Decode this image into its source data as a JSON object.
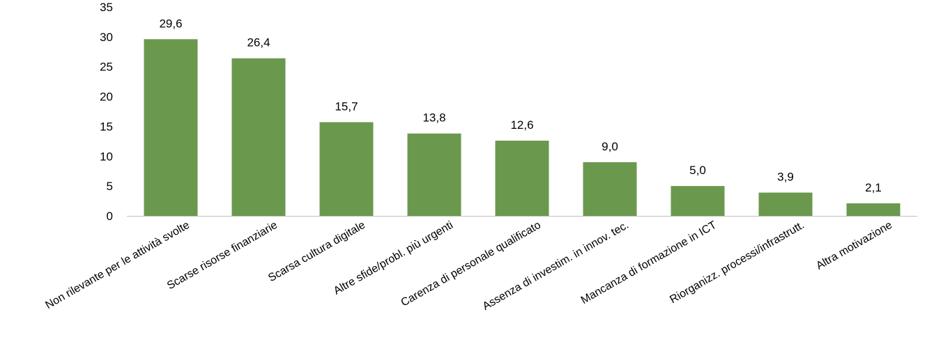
{
  "chart_data": {
    "type": "bar",
    "categories": [
      "Non rilevante per le attività svolte",
      "Scarse risorse finanziarie",
      "Scarsa cultura digitale",
      "Altre sfide/probl. più urgenti",
      "Carenza di personale qualificato",
      "Assenza di investim. in innov. tec.",
      "Mancanza di formazione in ICT",
      "Riorganizz. processi/infrastrutt.",
      "Altra motivazione"
    ],
    "values": [
      29.6,
      26.4,
      15.7,
      13.8,
      12.6,
      9.0,
      5.0,
      3.9,
      2.1
    ],
    "value_labels": [
      "29,6",
      "26,4",
      "15,7",
      "13,8",
      "12,6",
      "9,0",
      "5,0",
      "3,9",
      "2,1"
    ],
    "ylim": [
      0,
      35
    ],
    "yticks": [
      "0",
      "5",
      "10",
      "15",
      "20",
      "25",
      "30",
      "35"
    ],
    "grid": false,
    "bar_color": "#6a994e"
  }
}
